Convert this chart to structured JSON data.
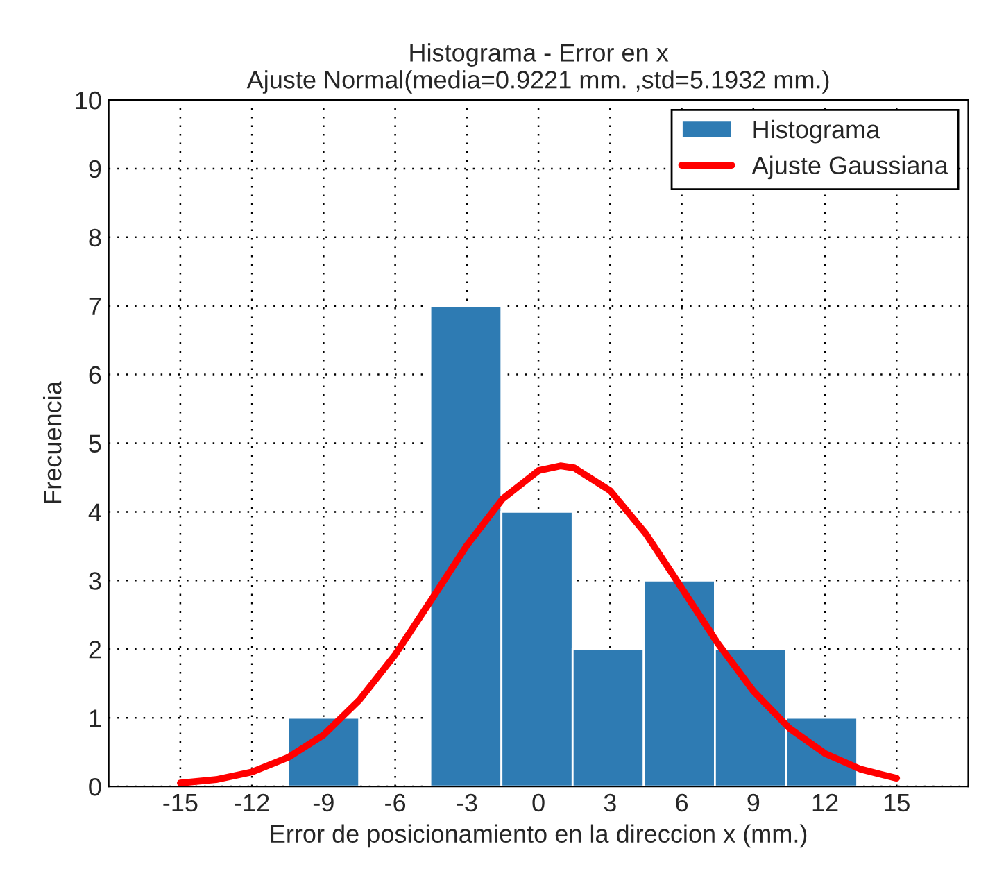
{
  "chart_data": {
    "type": "histogram",
    "title": "Histograma - Error en x",
    "subtitle": "Ajuste Normal(media=0.9221 mm. ,std=5.1932 mm.)",
    "xlabel": "Error de posicionamiento en la direccion x (mm.)",
    "ylabel": "Frecuencia",
    "series": [
      {
        "name": "Histograma",
        "color": "#2e7bb3",
        "bins": [
          -10.49,
          -7.51,
          -4.53,
          -1.55,
          1.43,
          4.41,
          7.39,
          10.37,
          13.35
        ],
        "values": [
          1,
          0,
          7,
          4,
          2,
          3,
          2,
          1
        ]
      },
      {
        "name": "Ajuste Gaussiana",
        "type": "line",
        "color": "#ff0000",
        "x": [
          -15,
          -13.5,
          -12,
          -10.5,
          -9,
          -7.5,
          -6,
          -4.5,
          -3,
          -1.5,
          0,
          0.92,
          1.5,
          3,
          4.5,
          6,
          7.5,
          9,
          10.5,
          12,
          13.5,
          15
        ],
        "values": [
          0.05,
          0.1,
          0.21,
          0.42,
          0.75,
          1.26,
          1.92,
          2.71,
          3.51,
          4.19,
          4.6,
          4.67,
          4.64,
          4.31,
          3.68,
          2.89,
          2.09,
          1.39,
          0.85,
          0.48,
          0.25,
          0.12
        ]
      }
    ],
    "xlim": [
      -18,
      18
    ],
    "ylim": [
      0,
      10
    ],
    "xticks": [
      -15,
      -12,
      -9,
      -6,
      -3,
      0,
      3,
      6,
      9,
      12,
      15
    ],
    "yticks": [
      0,
      1,
      2,
      3,
      4,
      5,
      6,
      7,
      8,
      9,
      10
    ],
    "grid": true,
    "legend": "top right"
  }
}
